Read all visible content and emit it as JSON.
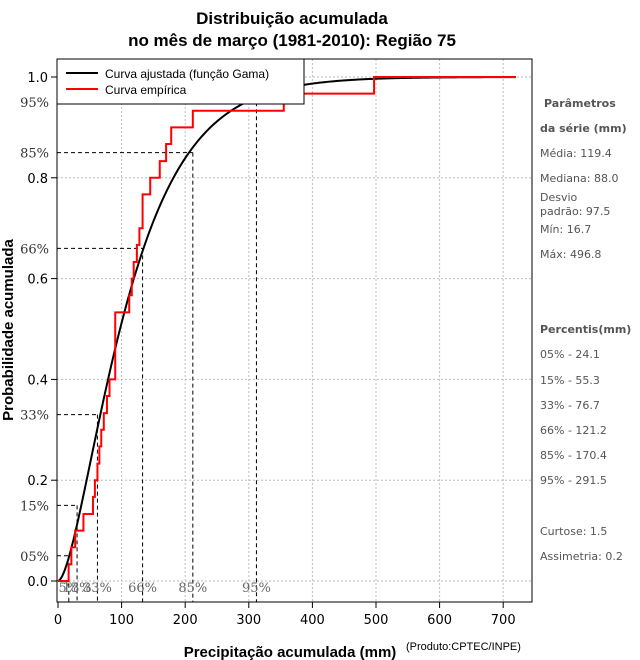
{
  "chart_data": {
    "type": "line",
    "title_line1": "Distribuição acumulada",
    "title_line2": "no mês de março (1981-2010): Região 75",
    "xlabel": "Precipitação acumulada (mm)",
    "ylabel": "Probabilidade acumulada",
    "product_note": "(Produto:CPTEC/INPE)",
    "xlim": [
      0,
      750
    ],
    "ylim": [
      0,
      1
    ],
    "x_ticks": [
      0,
      100,
      200,
      300,
      400,
      500,
      600,
      700
    ],
    "x_tick_labels": [
      "0",
      "100",
      "200",
      "300",
      "400",
      "500",
      "600",
      "700"
    ],
    "y_ticks": [
      0.0,
      0.2,
      0.4,
      0.6,
      0.8,
      1.0
    ],
    "y_tick_labels": [
      "0.0",
      "0.2",
      "0.4",
      "0.6",
      "0.8",
      "1.0"
    ],
    "legend": [
      {
        "label": "Curva ajustada (função Gama)",
        "color": "#000000"
      },
      {
        "label": "Curva empírica",
        "color": "#ff0000"
      }
    ],
    "gamma_fit": {
      "shape": 1.75,
      "scale": 68.2
    },
    "empirical_steps": [
      [
        0,
        0.0
      ],
      [
        16.7,
        0.033
      ],
      [
        21,
        0.067
      ],
      [
        27,
        0.1
      ],
      [
        33,
        0.1
      ],
      [
        40,
        0.133
      ],
      [
        55,
        0.167
      ],
      [
        58,
        0.2
      ],
      [
        62,
        0.233
      ],
      [
        65,
        0.267
      ],
      [
        68,
        0.3
      ],
      [
        72,
        0.333
      ],
      [
        77,
        0.367
      ],
      [
        81,
        0.4
      ],
      [
        90,
        0.533
      ],
      [
        112,
        0.567
      ],
      [
        116,
        0.6
      ],
      [
        119,
        0.633
      ],
      [
        124,
        0.667
      ],
      [
        128,
        0.7
      ],
      [
        133,
        0.767
      ],
      [
        137,
        0.767
      ],
      [
        145,
        0.8
      ],
      [
        160,
        0.833
      ],
      [
        170,
        0.867
      ],
      [
        178,
        0.9
      ],
      [
        212,
        0.933
      ],
      [
        265,
        0.933
      ],
      [
        355,
        0.967
      ],
      [
        497,
        1.0
      ],
      [
        720,
        1.0
      ]
    ],
    "percentiles": [
      {
        "label": "05%",
        "p": 0.05,
        "x": 24.1,
        "xlabel": "5%"
      },
      {
        "label": "15%",
        "p": 0.15,
        "x": 55.3,
        "xlabel": "15%"
      },
      {
        "label": "33%",
        "p": 0.33,
        "x": 76.7,
        "xlabel": "33%"
      },
      {
        "label": "66%",
        "p": 0.66,
        "x": 121.2,
        "xlabel": "66%"
      },
      {
        "label": "85%",
        "p": 0.85,
        "x": 170.4,
        "xlabel": "85%"
      },
      {
        "label": "95%",
        "p": 0.95,
        "x": 291.5,
        "xlabel": "95%"
      }
    ],
    "percentile_line_x": [
      17,
      30,
      62,
      133,
      212,
      312
    ]
  },
  "stats": {
    "header1": "Parâmetros",
    "header2": "da série (mm)",
    "media": "Média: 119.4",
    "mediana": "Mediana: 88.0",
    "desvio1": "Desvio",
    "desvio2": "padrão: 97.5",
    "min": "Mín: 16.7",
    "max": "Máx: 496.8",
    "percentis_header": "Percentis(mm)",
    "p05": "05% - 24.1",
    "p15": "15% - 55.3",
    "p33": "33% - 76.7",
    "p66": "66% - 121.2",
    "p85": "85% - 170.4",
    "p95": "95% - 291.5",
    "curtose": "Curtose: 1.5",
    "assimetria": "Assimetria: 0.2"
  }
}
